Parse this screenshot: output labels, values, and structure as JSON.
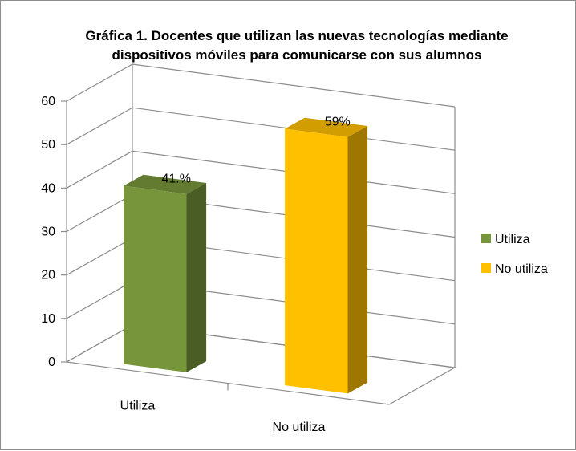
{
  "chart_data": {
    "type": "bar",
    "style": "3d-clustered-column",
    "title_lines": [
      "Gráfica 1. Docentes que utilizan las nuevas tecnologías mediante",
      "dispositivos  móviles para comunicarse con sus alumnos"
    ],
    "categories": [
      "Utiliza",
      "No utiliza"
    ],
    "values": [
      41,
      59
    ],
    "data_labels": [
      "41.%",
      "59%"
    ],
    "colors": [
      "#77963c",
      "#ffc000"
    ],
    "ylim": [
      0,
      60
    ],
    "yticks": [
      "0",
      "10",
      "20",
      "30",
      "40",
      "50",
      "60"
    ],
    "legend": {
      "position": "right",
      "entries": [
        {
          "label": "Utiliza",
          "color": "#77963c"
        },
        {
          "label": "No utiliza",
          "color": "#ffc000"
        }
      ]
    },
    "grid": true
  }
}
